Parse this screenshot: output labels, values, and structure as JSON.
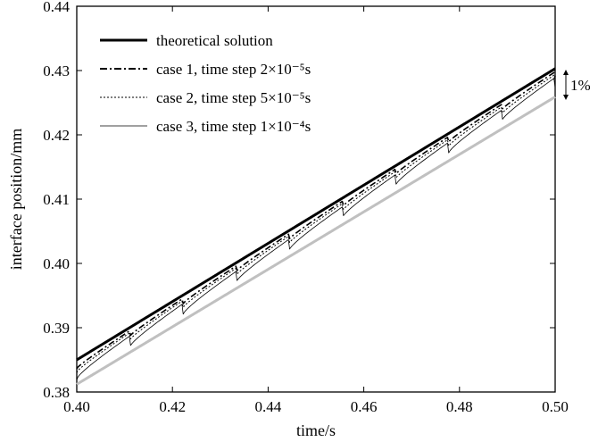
{
  "chart_data": {
    "type": "line",
    "title": "",
    "xlabel": "time/s",
    "ylabel": "interface position/mm",
    "xlim": [
      0.4,
      0.5
    ],
    "ylim": [
      0.38,
      0.44
    ],
    "xticks": [
      0.4,
      0.42,
      0.44,
      0.46,
      0.48,
      0.5
    ],
    "yticks": [
      0.38,
      0.39,
      0.4,
      0.41,
      0.42,
      0.43,
      0.44
    ],
    "xtick_labels": [
      "0.40",
      "0.42",
      "0.44",
      "0.46",
      "0.48",
      "0.50"
    ],
    "ytick_labels": [
      "0.38",
      "0.39",
      "0.40",
      "0.41",
      "0.42",
      "0.43",
      "0.44"
    ],
    "legend_position": "top-left",
    "series": [
      {
        "name": "theoretical solution",
        "style": "solid-thick",
        "color": "#000000",
        "x": [
          0.4,
          0.5
        ],
        "y": [
          0.385,
          0.4303
        ]
      },
      {
        "name": "case 1, time step 2×10⁻⁵s",
        "style": "dashdot",
        "color": "#000000",
        "x": [
          0.4,
          0.5
        ],
        "y": [
          0.3845,
          0.4298
        ]
      },
      {
        "name": "case 2, time step 5×10⁻⁵s",
        "style": "dotted",
        "color": "#000000",
        "x": [
          0.4,
          0.5
        ],
        "y": [
          0.3842,
          0.4294
        ]
      },
      {
        "name": "case 3, time step 1×10⁻⁴s",
        "style": "solid-thin-scalloped",
        "color": "#000000",
        "x": [
          0.4,
          0.5
        ],
        "y": [
          0.3837,
          0.4289
        ]
      },
      {
        "name": "",
        "style": "solid-gray",
        "color": "#c0c0c0",
        "x": [
          0.4,
          0.5
        ],
        "y": [
          0.3812,
          0.4259
        ]
      }
    ],
    "annotation": {
      "text": "1%",
      "x": 0.5,
      "y_top": 0.4303,
      "y_bottom": 0.4259
    }
  }
}
